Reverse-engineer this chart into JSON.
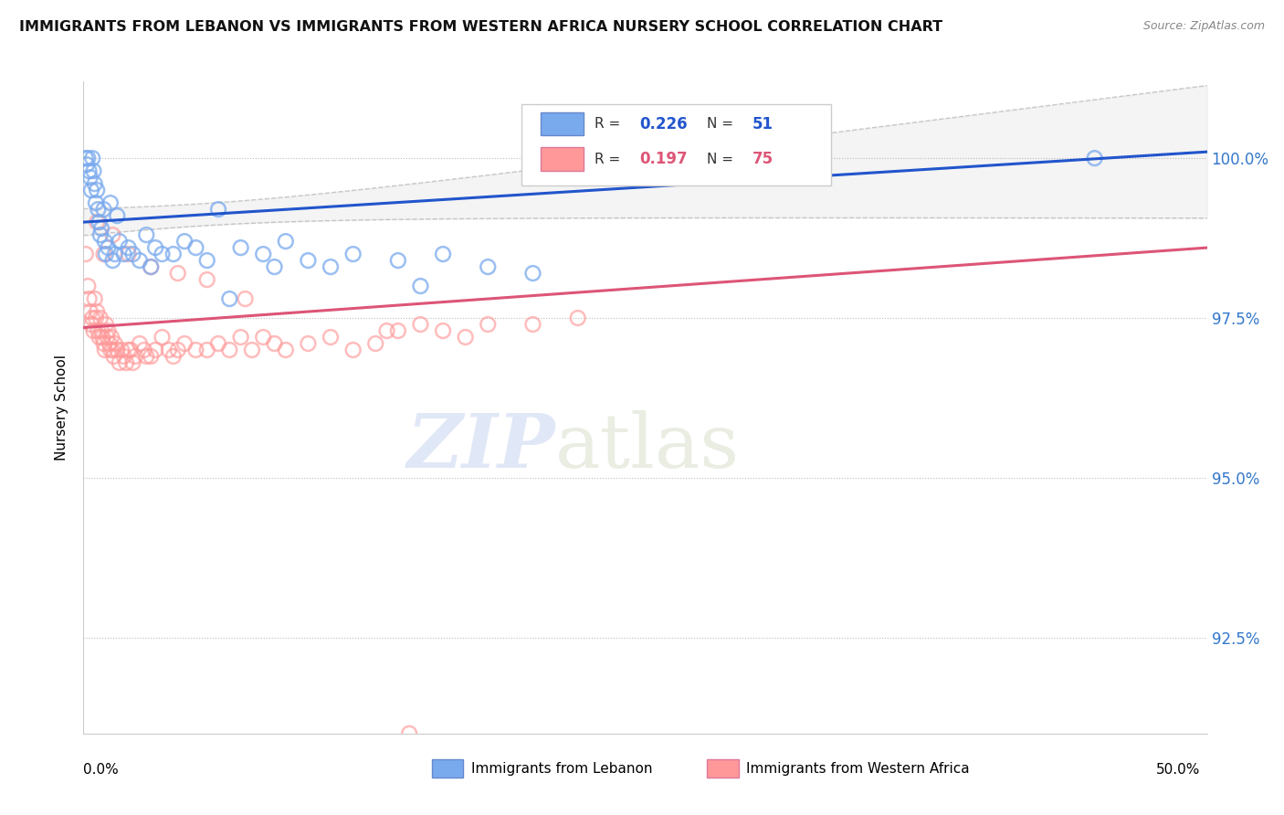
{
  "title": "IMMIGRANTS FROM LEBANON VS IMMIGRANTS FROM WESTERN AFRICA NURSERY SCHOOL CORRELATION CHART",
  "source": "Source: ZipAtlas.com",
  "ylabel": "Nursery School",
  "xmin": 0.0,
  "xmax": 50.0,
  "ymin": 91.0,
  "ymax": 101.2,
  "ytick_vals": [
    92.5,
    95.0,
    97.5,
    100.0
  ],
  "ytick_labels": [
    "92.5%",
    "95.0%",
    "97.5%",
    "100.0%"
  ],
  "legend_blue_label": "Immigrants from Lebanon",
  "legend_pink_label": "Immigrants from Western Africa",
  "blue_color": "#7aaaee",
  "pink_color": "#ff9999",
  "blue_line_color": "#2255cc",
  "pink_line_color": "#dd5577",
  "blue_R": "0.226",
  "blue_N": "51",
  "pink_R": "0.197",
  "pink_N": "75",
  "blue_intercept": 99.0,
  "blue_slope": 0.022,
  "pink_intercept": 97.35,
  "pink_slope": 0.025,
  "blue_points_x": [
    0.1,
    0.15,
    0.2,
    0.25,
    0.3,
    0.35,
    0.4,
    0.45,
    0.5,
    0.55,
    0.6,
    0.65,
    0.7,
    0.75,
    0.8,
    0.9,
    0.95,
    1.0,
    1.1,
    1.2,
    1.3,
    1.4,
    1.5,
    1.6,
    1.8,
    2.0,
    2.2,
    2.5,
    3.0,
    3.5,
    4.0,
    4.5,
    5.0,
    5.5,
    6.0,
    7.0,
    8.0,
    9.0,
    10.0,
    12.0,
    14.0,
    16.0,
    18.0,
    20.0,
    2.8,
    3.2,
    6.5,
    8.5,
    11.0,
    15.0,
    45.0
  ],
  "blue_points_y": [
    100.0,
    99.9,
    100.0,
    99.8,
    99.7,
    99.5,
    100.0,
    99.8,
    99.6,
    99.3,
    99.5,
    99.2,
    99.0,
    98.8,
    98.9,
    99.2,
    98.7,
    98.5,
    98.6,
    99.3,
    98.4,
    98.5,
    99.1,
    98.7,
    98.5,
    98.6,
    98.5,
    98.4,
    98.3,
    98.5,
    98.5,
    98.7,
    98.6,
    98.4,
    99.2,
    98.6,
    98.5,
    98.7,
    98.4,
    98.5,
    98.4,
    98.5,
    98.3,
    98.2,
    98.8,
    98.6,
    97.8,
    98.3,
    98.3,
    98.0,
    100.0
  ],
  "pink_points_x": [
    0.1,
    0.2,
    0.25,
    0.3,
    0.35,
    0.4,
    0.45,
    0.5,
    0.55,
    0.6,
    0.65,
    0.7,
    0.75,
    0.8,
    0.85,
    0.9,
    0.95,
    1.0,
    1.05,
    1.1,
    1.15,
    1.2,
    1.25,
    1.3,
    1.35,
    1.4,
    1.5,
    1.6,
    1.7,
    1.8,
    1.9,
    2.0,
    2.1,
    2.2,
    2.3,
    2.5,
    2.7,
    2.8,
    3.0,
    3.2,
    3.5,
    3.8,
    4.0,
    4.2,
    4.5,
    5.0,
    5.5,
    6.0,
    6.5,
    7.0,
    7.5,
    8.0,
    8.5,
    9.0,
    10.0,
    11.0,
    12.0,
    13.0,
    14.0,
    15.0,
    16.0,
    17.0,
    18.0,
    20.0,
    22.0,
    0.6,
    0.9,
    1.3,
    2.0,
    3.0,
    4.2,
    5.5,
    7.2,
    13.5,
    14.5
  ],
  "pink_points_y": [
    98.5,
    98.0,
    97.8,
    97.6,
    97.4,
    97.5,
    97.3,
    97.8,
    97.5,
    97.6,
    97.3,
    97.2,
    97.5,
    97.3,
    97.2,
    97.1,
    97.0,
    97.4,
    97.2,
    97.3,
    97.1,
    97.0,
    97.2,
    97.0,
    96.9,
    97.1,
    97.0,
    96.8,
    97.0,
    96.9,
    96.8,
    97.0,
    97.0,
    96.8,
    96.9,
    97.1,
    97.0,
    96.9,
    96.9,
    97.0,
    97.2,
    97.0,
    96.9,
    97.0,
    97.1,
    97.0,
    97.0,
    97.1,
    97.0,
    97.2,
    97.0,
    97.2,
    97.1,
    97.0,
    97.1,
    97.2,
    97.0,
    97.1,
    97.3,
    97.4,
    97.3,
    97.2,
    97.4,
    97.4,
    97.5,
    99.0,
    98.5,
    98.8,
    98.5,
    98.3,
    98.2,
    98.1,
    97.8,
    97.3,
    91.0
  ]
}
